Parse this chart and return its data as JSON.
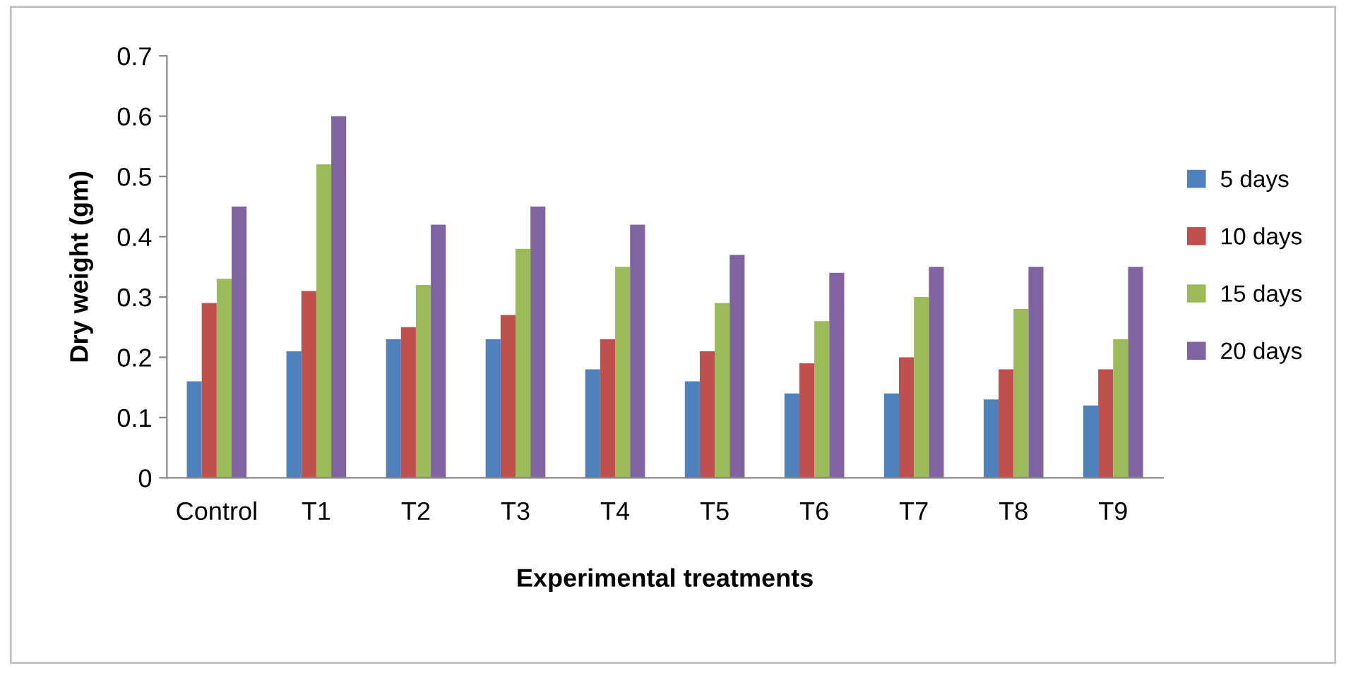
{
  "chart_data": {
    "type": "bar",
    "xlabel": "Experimental treatments",
    "ylabel": "Dry weight (gm)",
    "categories": [
      "Control",
      "T1",
      "T2",
      "T3",
      "T4",
      "T5",
      "T6",
      "T7",
      "T8",
      "T9"
    ],
    "series": [
      {
        "name": "5 days",
        "color": "#4f81bd",
        "values": [
          0.16,
          0.21,
          0.23,
          0.23,
          0.18,
          0.16,
          0.14,
          0.14,
          0.13,
          0.12
        ]
      },
      {
        "name": "10 days",
        "color": "#c0504d",
        "values": [
          0.29,
          0.31,
          0.25,
          0.27,
          0.23,
          0.21,
          0.19,
          0.2,
          0.18,
          0.18
        ]
      },
      {
        "name": "15 days",
        "color": "#9bbb59",
        "values": [
          0.33,
          0.52,
          0.32,
          0.38,
          0.35,
          0.29,
          0.26,
          0.3,
          0.28,
          0.23
        ]
      },
      {
        "name": "20 days",
        "color": "#8064a2",
        "values": [
          0.45,
          0.6,
          0.42,
          0.45,
          0.42,
          0.37,
          0.34,
          0.35,
          0.35,
          0.35
        ]
      }
    ],
    "ylim": [
      0,
      0.7
    ],
    "yticks": [
      {
        "value": 0,
        "label": "0"
      },
      0.1,
      0.2,
      0.3,
      0.4,
      0.5,
      0.6,
      0.7
    ],
    "grid": false,
    "legend": "right"
  }
}
